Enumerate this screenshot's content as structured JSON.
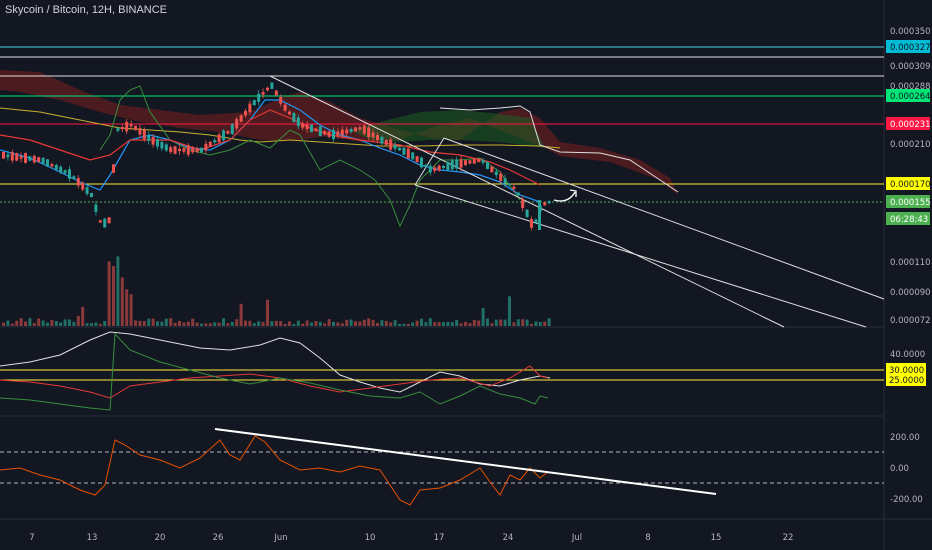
{
  "title": "Skycoin / Bitcoin, 12H, BINANCE",
  "price_axis": {
    "labels": [
      "0.000350",
      "0.000309",
      "0.000288",
      "0.000210",
      "0.000110",
      "0.000090",
      "0.000072"
    ],
    "tags": [
      {
        "label": "0.000327",
        "bg": "#00bcd4",
        "fg": "#131722"
      },
      {
        "label": "0.000264",
        "bg": "#00e676",
        "fg": "#131722"
      },
      {
        "label": "0.000231",
        "bg": "#ff1744",
        "fg": "#ffffff"
      },
      {
        "label": "0.000170",
        "bg": "#ffff00",
        "fg": "#131722"
      },
      {
        "label": "0.000155",
        "bg": "#4caf50",
        "fg": "#ffffff"
      },
      {
        "label": "06:28:43",
        "bg": "#4caf50",
        "fg": "#ffffff"
      }
    ]
  },
  "indicator1_axis": {
    "labels": [
      "40.0000"
    ],
    "tags": [
      {
        "label": "30.0000",
        "bg": "#ffff00",
        "fg": "#131722"
      },
      {
        "label": "25.0000",
        "bg": "#ffff00",
        "fg": "#131722"
      }
    ]
  },
  "indicator2_axis": {
    "labels": [
      "200.00",
      "0.00",
      "-200.00"
    ]
  },
  "time_axis": {
    "labels": [
      "7",
      "13",
      "20",
      "26",
      "Jun",
      "10",
      "17",
      "24",
      "Jul",
      "8",
      "15",
      "22"
    ]
  },
  "colors": {
    "background": "#131722",
    "grid": "#1e222d",
    "up": "#26a69a",
    "down": "#ef5350",
    "green_candle": "#4caf50",
    "red_candle": "#f23645"
  }
}
